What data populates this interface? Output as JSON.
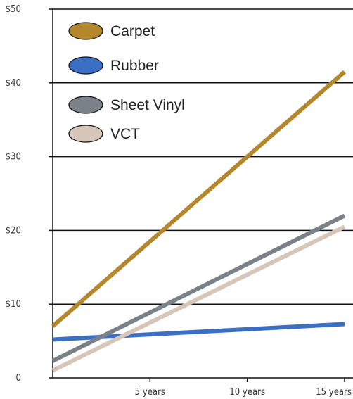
{
  "chart_data": {
    "type": "line",
    "title": "",
    "xlabel": "",
    "ylabel": "",
    "x": [
      0,
      15
    ],
    "x_ticks": [
      {
        "value": 5,
        "label": "5 years"
      },
      {
        "value": 10,
        "label": "10 years"
      },
      {
        "value": 15,
        "label": "15 years"
      }
    ],
    "y_ticks": [
      {
        "value": 0,
        "label": "0"
      },
      {
        "value": 10,
        "label": "$10"
      },
      {
        "value": 20,
        "label": "$20"
      },
      {
        "value": 30,
        "label": "$30"
      },
      {
        "value": 40,
        "label": "$40"
      },
      {
        "value": 50,
        "label": "$50"
      }
    ],
    "xlim": [
      0,
      15
    ],
    "ylim": [
      0,
      50
    ],
    "grid": "horizontal",
    "legend_position": "top-left",
    "series": [
      {
        "name": "Carpet",
        "color": "#b5872c",
        "values": [
          7.0,
          41.5
        ]
      },
      {
        "name": "Rubber",
        "color": "#3b6fc4",
        "values": [
          5.2,
          7.3
        ]
      },
      {
        "name": "Sheet Vinyl",
        "color": "#7b8189",
        "values": [
          2.3,
          22.0
        ]
      },
      {
        "name": "VCT",
        "color": "#d6c6b9",
        "values": [
          1.0,
          20.5
        ]
      }
    ]
  }
}
